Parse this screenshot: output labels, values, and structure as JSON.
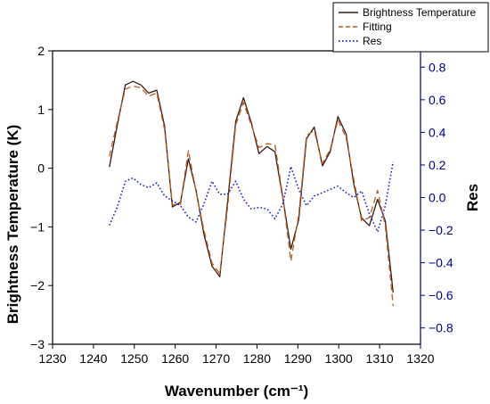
{
  "chart_data": {
    "type": "line",
    "xlabel": "Wavenumber (cm⁻¹)",
    "ylabel_left": "Brightness Temperature (K)",
    "ylabel_right": "Res",
    "xlim": [
      1230,
      1320
    ],
    "ylim_left": [
      -3,
      2
    ],
    "ylim_right": [
      -0.9,
      0.9
    ],
    "x_ticks": [
      1230,
      1240,
      1250,
      1260,
      1270,
      1280,
      1290,
      1300,
      1310,
      1320
    ],
    "y_ticks_left": [
      -3,
      -2,
      -1,
      0,
      1,
      2
    ],
    "y_ticks_right": [
      -0.8,
      -0.6,
      -0.4,
      -0.2,
      0.0,
      0.2,
      0.4,
      0.6,
      0.8
    ],
    "y_ticks_right_labels": [
      "−0.8",
      "−0.6",
      "−0.4",
      "−0.2",
      "0.0",
      "0.2",
      "0.4",
      "0.6",
      "0.8"
    ],
    "y_ticks_left_labels": [
      "−3",
      "−2",
      "−1",
      "0",
      "1",
      "2"
    ],
    "legend_position": "top-right",
    "x": [
      1243.9,
      1245.8,
      1247.8,
      1249.7,
      1251.6,
      1253.5,
      1255.5,
      1257.4,
      1259.3,
      1261.3,
      1263.2,
      1265.1,
      1267.0,
      1269.0,
      1270.9,
      1272.8,
      1274.8,
      1276.7,
      1278.6,
      1280.5,
      1282.5,
      1284.4,
      1286.3,
      1288.3,
      1290.2,
      1292.1,
      1294.0,
      1296.0,
      1297.9,
      1299.8,
      1301.8,
      1303.7,
      1305.6,
      1307.5,
      1309.5,
      1311.4,
      1313.3
    ],
    "series": [
      {
        "name": "Brightness Temperature",
        "axis": "left",
        "color": "#3a1a12",
        "dash": "solid",
        "values": [
          0.02,
          0.72,
          1.42,
          1.48,
          1.42,
          1.28,
          1.33,
          0.72,
          -0.66,
          -0.58,
          0.16,
          -0.38,
          -1.12,
          -1.67,
          -1.85,
          -0.58,
          0.8,
          1.2,
          0.78,
          0.25,
          0.37,
          0.28,
          -0.5,
          -1.38,
          -0.88,
          0.5,
          0.7,
          0.04,
          0.28,
          0.88,
          0.58,
          -0.28,
          -0.85,
          -0.98,
          -0.53,
          -0.9,
          -2.12
        ]
      },
      {
        "name": "Fitting",
        "axis": "left",
        "color": "#b85c18",
        "dash": "dashed",
        "values": [
          0.2,
          0.78,
          1.35,
          1.4,
          1.37,
          1.23,
          1.28,
          0.66,
          -0.62,
          -0.62,
          0.3,
          -0.4,
          -1.05,
          -1.62,
          -1.8,
          -0.68,
          0.74,
          1.12,
          0.74,
          0.35,
          0.42,
          0.4,
          -0.48,
          -1.58,
          -0.8,
          0.56,
          0.64,
          0.08,
          0.32,
          0.82,
          0.52,
          -0.2,
          -0.9,
          -0.84,
          -0.38,
          -0.98,
          -2.35
        ]
      },
      {
        "name": "Res",
        "axis": "right",
        "color": "#1f1fd6",
        "dash": "dotted",
        "values": [
          -0.17,
          -0.06,
          0.1,
          0.12,
          0.08,
          0.06,
          0.09,
          0.01,
          -0.02,
          -0.05,
          -0.12,
          -0.15,
          -0.04,
          0.1,
          0.02,
          0.02,
          0.1,
          -0.01,
          -0.07,
          -0.06,
          -0.07,
          -0.13,
          -0.04,
          0.19,
          0.05,
          -0.05,
          0.01,
          0.03,
          0.05,
          0.07,
          0.03,
          0.0,
          0.04,
          -0.1,
          -0.21,
          -0.05,
          0.22
        ]
      }
    ]
  }
}
